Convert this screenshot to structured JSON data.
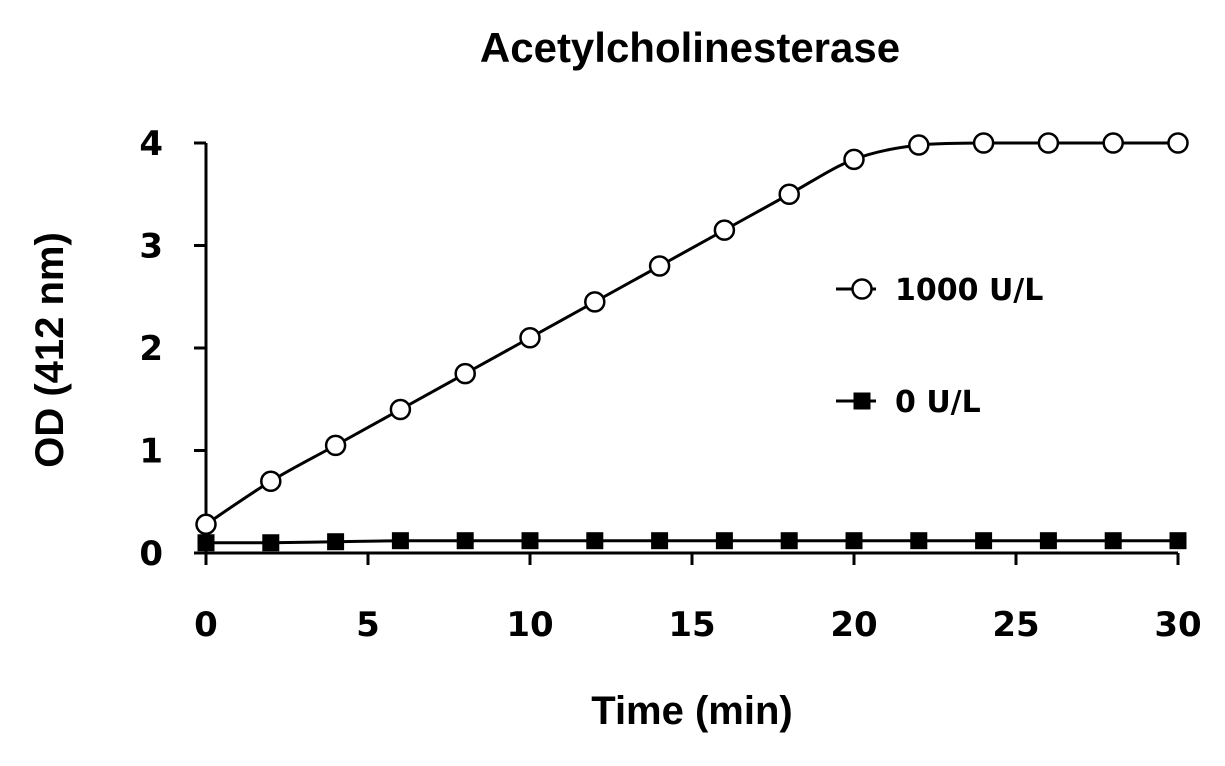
{
  "chart_data": {
    "type": "line",
    "title": "Acetylcholinesterase",
    "xlabel": "Time (min)",
    "ylabel": "OD (412 nm)",
    "xlim": [
      0,
      30
    ],
    "ylim": [
      0,
      4
    ],
    "xticks": [
      0,
      5,
      10,
      15,
      20,
      25,
      30
    ],
    "yticks": [
      0,
      1,
      2,
      3,
      4
    ],
    "grid": false,
    "legend_position": "right",
    "x": [
      0,
      2,
      4,
      6,
      8,
      10,
      12,
      14,
      16,
      18,
      20,
      22,
      24,
      26,
      28,
      30
    ],
    "series": [
      {
        "name": "1000 U/L",
        "marker": "open-circle",
        "values": [
          0.28,
          0.7,
          1.05,
          1.4,
          1.75,
          2.1,
          2.45,
          2.8,
          3.15,
          3.5,
          3.84,
          3.98,
          4.0,
          4.0,
          4.0,
          4.0
        ]
      },
      {
        "name": "0 U/L",
        "marker": "filled-square",
        "values": [
          0.1,
          0.1,
          0.11,
          0.12,
          0.12,
          0.12,
          0.12,
          0.12,
          0.12,
          0.12,
          0.12,
          0.12,
          0.12,
          0.12,
          0.12,
          0.12
        ]
      }
    ],
    "colors": {
      "line": "#000000",
      "marker_fill_open": "#ffffff",
      "marker_fill_solid": "#000000"
    }
  }
}
